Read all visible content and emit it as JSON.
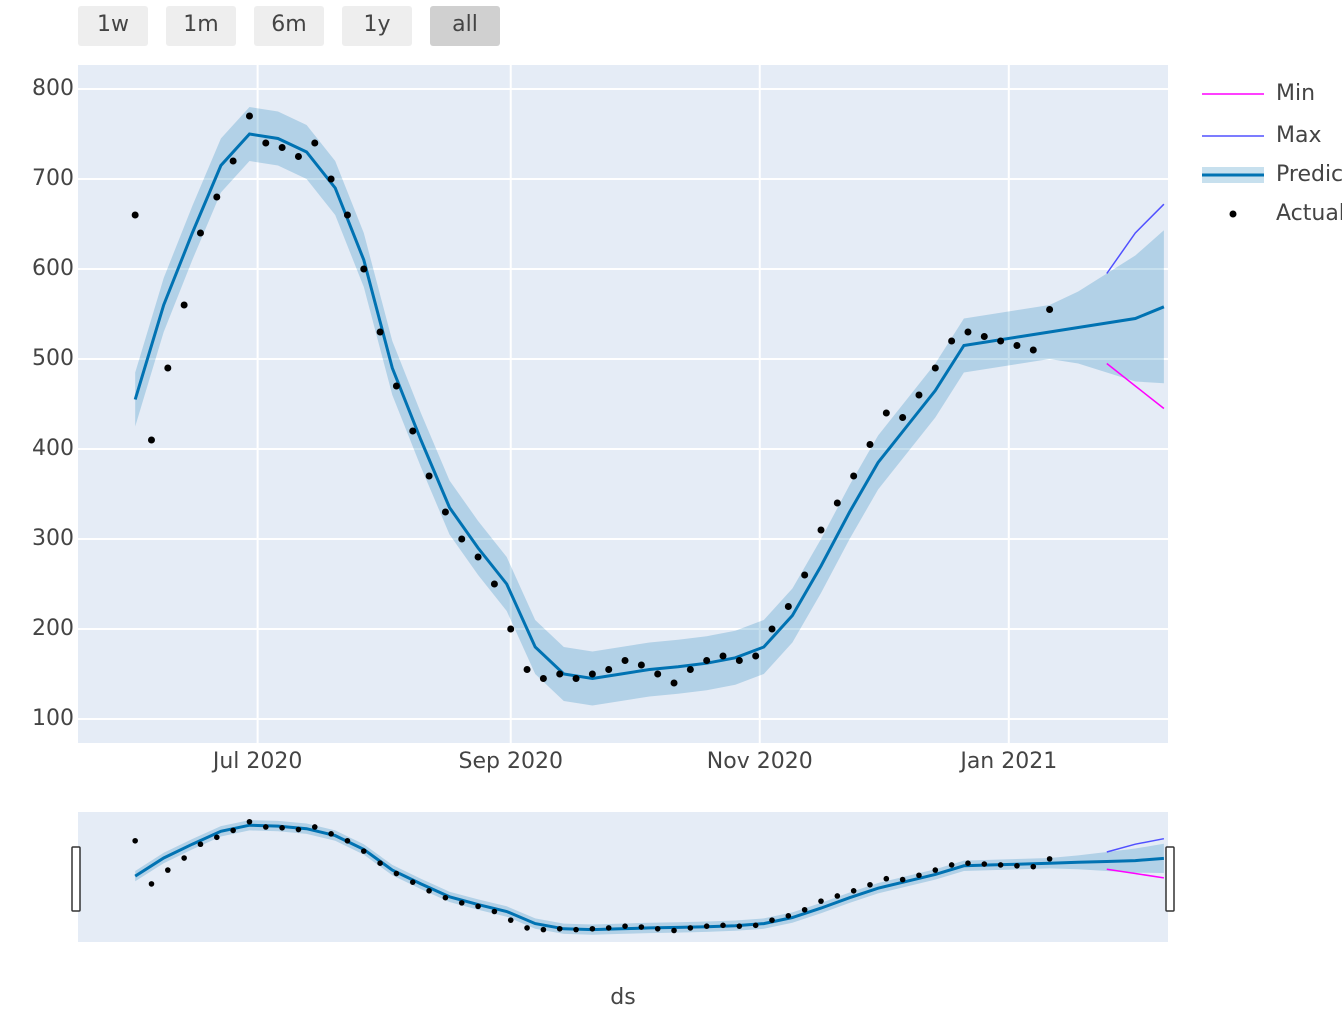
{
  "chart_data": {
    "type": "line",
    "x_title": "ds",
    "range_buttons": [
      "1w",
      "1m",
      "6m",
      "1y",
      "all"
    ],
    "active_button": 4,
    "xlim": [
      "2020-05-18",
      "2021-02-09"
    ],
    "xticks": [
      {
        "value": "2020-07-01",
        "label": "Jul 2020"
      },
      {
        "value": "2020-09-01",
        "label": "Sep 2020"
      },
      {
        "value": "2020-11-01",
        "label": "Nov 2020"
      },
      {
        "value": "2021-01-01",
        "label": "Jan 2021"
      }
    ],
    "ylim": [
      73.3,
      826.7
    ],
    "yticks": [
      100,
      200,
      300,
      400,
      500,
      600,
      700,
      800
    ],
    "grid": true,
    "legend": "right",
    "band_color": "#0072B2",
    "series": [
      {
        "name": "Min",
        "color": "#ff00ff",
        "mode": "line",
        "x": [
          "2020-06-01",
          "2020-06-08",
          "2020-06-15",
          "2020-06-22",
          "2020-06-29",
          "2020-07-06",
          "2020-07-13",
          "2020-07-20",
          "2020-07-27",
          "2020-08-03",
          "2020-08-10",
          "2020-08-17",
          "2020-08-24",
          "2020-08-31",
          "2020-09-07",
          "2020-09-14",
          "2020-09-21",
          "2020-09-28",
          "2020-10-05",
          "2020-10-12",
          "2020-10-19",
          "2020-10-26",
          "2020-11-02",
          "2020-11-09",
          "2020-11-16",
          "2020-11-23",
          "2020-11-30",
          "2020-12-07",
          "2020-12-14",
          "2020-12-21",
          "2020-12-28",
          "2021-01-04",
          "2021-01-11",
          "2021-01-18",
          "2021-01-25",
          "2021-02-01",
          "2021-02-08"
        ],
        "values": [
          null,
          null,
          null,
          null,
          null,
          null,
          null,
          null,
          null,
          null,
          null,
          null,
          null,
          null,
          null,
          null,
          null,
          null,
          null,
          null,
          null,
          null,
          null,
          null,
          null,
          null,
          null,
          null,
          null,
          null,
          null,
          null,
          null,
          null,
          495,
          470,
          445
        ]
      },
      {
        "name": "Max",
        "color": "#5050ff",
        "mode": "line",
        "x": [
          "2020-06-01",
          "2020-06-08",
          "2020-06-15",
          "2020-06-22",
          "2020-06-29",
          "2020-07-06",
          "2020-07-13",
          "2020-07-20",
          "2020-07-27",
          "2020-08-03",
          "2020-08-10",
          "2020-08-17",
          "2020-08-24",
          "2020-08-31",
          "2020-09-07",
          "2020-09-14",
          "2020-09-21",
          "2020-09-28",
          "2020-10-05",
          "2020-10-12",
          "2020-10-19",
          "2020-10-26",
          "2020-11-02",
          "2020-11-09",
          "2020-11-16",
          "2020-11-23",
          "2020-11-30",
          "2020-12-07",
          "2020-12-14",
          "2020-12-21",
          "2020-12-28",
          "2021-01-04",
          "2021-01-11",
          "2021-01-18",
          "2021-01-25",
          "2021-02-01",
          "2021-02-08"
        ],
        "values": [
          null,
          null,
          null,
          null,
          null,
          null,
          null,
          null,
          null,
          null,
          null,
          null,
          null,
          null,
          null,
          null,
          null,
          null,
          null,
          null,
          null,
          null,
          null,
          null,
          null,
          null,
          null,
          null,
          null,
          null,
          null,
          null,
          null,
          null,
          595,
          640,
          672
        ]
      },
      {
        "name": "Predicted",
        "color": "#0072B2",
        "mode": "band-line",
        "x": [
          "2020-06-01",
          "2020-06-08",
          "2020-06-15",
          "2020-06-22",
          "2020-06-29",
          "2020-07-06",
          "2020-07-13",
          "2020-07-20",
          "2020-07-27",
          "2020-08-03",
          "2020-08-10",
          "2020-08-17",
          "2020-08-24",
          "2020-08-31",
          "2020-09-07",
          "2020-09-14",
          "2020-09-21",
          "2020-09-28",
          "2020-10-05",
          "2020-10-12",
          "2020-10-19",
          "2020-10-26",
          "2020-11-02",
          "2020-11-09",
          "2020-11-16",
          "2020-11-23",
          "2020-11-30",
          "2020-12-07",
          "2020-12-14",
          "2020-12-21",
          "2020-12-28",
          "2021-01-04",
          "2021-01-11",
          "2021-01-18",
          "2021-01-25",
          "2021-02-01",
          "2021-02-08"
        ],
        "values": [
          455,
          560,
          640,
          715,
          750,
          745,
          730,
          690,
          610,
          490,
          410,
          335,
          290,
          250,
          180,
          150,
          145,
          150,
          155,
          158,
          162,
          168,
          180,
          215,
          270,
          330,
          385,
          425,
          465,
          515,
          520,
          525,
          530,
          535,
          540,
          545,
          558
        ],
        "upper": [
          485,
          590,
          670,
          745,
          780,
          775,
          760,
          720,
          640,
          520,
          440,
          365,
          320,
          280,
          210,
          180,
          175,
          180,
          185,
          188,
          192,
          198,
          210,
          245,
          300,
          360,
          415,
          455,
          495,
          545,
          550,
          555,
          560,
          575,
          595,
          615,
          643
        ],
        "lower": [
          425,
          530,
          610,
          685,
          720,
          715,
          700,
          660,
          580,
          460,
          380,
          305,
          260,
          220,
          150,
          120,
          115,
          120,
          125,
          128,
          132,
          138,
          150,
          185,
          240,
          300,
          355,
          395,
          435,
          485,
          490,
          495,
          500,
          495,
          485,
          475,
          473
        ]
      },
      {
        "name": "Actual",
        "color": "#000000",
        "mode": "markers",
        "x": [
          "2020-06-01",
          "2020-06-05",
          "2020-06-09",
          "2020-06-13",
          "2020-06-17",
          "2020-06-21",
          "2020-06-25",
          "2020-06-29",
          "2020-07-03",
          "2020-07-07",
          "2020-07-11",
          "2020-07-15",
          "2020-07-19",
          "2020-07-23",
          "2020-07-27",
          "2020-07-31",
          "2020-08-04",
          "2020-08-08",
          "2020-08-12",
          "2020-08-16",
          "2020-08-20",
          "2020-08-24",
          "2020-08-28",
          "2020-09-01",
          "2020-09-05",
          "2020-09-09",
          "2020-09-13",
          "2020-09-17",
          "2020-09-21",
          "2020-09-25",
          "2020-09-29",
          "2020-10-03",
          "2020-10-07",
          "2020-10-11",
          "2020-10-15",
          "2020-10-19",
          "2020-10-23",
          "2020-10-27",
          "2020-10-31",
          "2020-11-04",
          "2020-11-08",
          "2020-11-12",
          "2020-11-16",
          "2020-11-20",
          "2020-11-24",
          "2020-11-28",
          "2020-12-02",
          "2020-12-06",
          "2020-12-10",
          "2020-12-14",
          "2020-12-18",
          "2020-12-22",
          "2020-12-26",
          "2020-12-30",
          "2021-01-03",
          "2021-01-07",
          "2021-01-11"
        ],
        "values": [
          660,
          410,
          490,
          560,
          640,
          680,
          720,
          770,
          740,
          735,
          725,
          740,
          700,
          660,
          600,
          530,
          470,
          420,
          370,
          330,
          300,
          280,
          250,
          200,
          155,
          145,
          150,
          145,
          150,
          155,
          165,
          160,
          150,
          140,
          155,
          165,
          170,
          165,
          170,
          200,
          225,
          260,
          310,
          340,
          370,
          405,
          440,
          435,
          460,
          490,
          520,
          530,
          525,
          520,
          515,
          510,
          555
        ]
      }
    ]
  }
}
